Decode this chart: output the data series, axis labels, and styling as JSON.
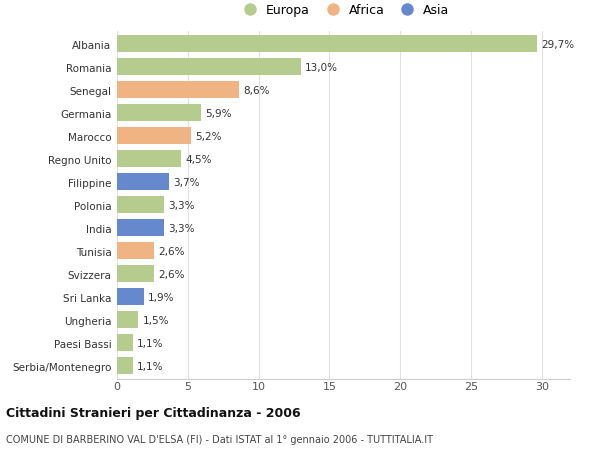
{
  "categories": [
    "Albania",
    "Romania",
    "Senegal",
    "Germania",
    "Marocco",
    "Regno Unito",
    "Filippine",
    "Polonia",
    "India",
    "Tunisia",
    "Svizzera",
    "Sri Lanka",
    "Ungheria",
    "Paesi Bassi",
    "Serbia/Montenegro"
  ],
  "values": [
    29.7,
    13.0,
    8.6,
    5.9,
    5.2,
    4.5,
    3.7,
    3.3,
    3.3,
    2.6,
    2.6,
    1.9,
    1.5,
    1.1,
    1.1
  ],
  "labels": [
    "29,7%",
    "13,0%",
    "8,6%",
    "5,9%",
    "5,2%",
    "4,5%",
    "3,7%",
    "3,3%",
    "3,3%",
    "2,6%",
    "2,6%",
    "1,9%",
    "1,5%",
    "1,1%",
    "1,1%"
  ],
  "continents": [
    "Europa",
    "Europa",
    "Africa",
    "Europa",
    "Africa",
    "Europa",
    "Asia",
    "Europa",
    "Asia",
    "Africa",
    "Europa",
    "Asia",
    "Europa",
    "Europa",
    "Europa"
  ],
  "colors": {
    "Europa": "#b5cc8e",
    "Africa": "#f0b482",
    "Asia": "#6688cc"
  },
  "legend_labels": [
    "Europa",
    "Africa",
    "Asia"
  ],
  "title": "Cittadini Stranieri per Cittadinanza - 2006",
  "subtitle": "COMUNE DI BARBERINO VAL D'ELSA (FI) - Dati ISTAT al 1° gennaio 2006 - TUTTITALIA.IT",
  "xlim": [
    0,
    32
  ],
  "xticks": [
    0,
    5,
    10,
    15,
    20,
    25,
    30
  ],
  "background_color": "#ffffff",
  "grid_color": "#e0e0e0",
  "bar_height": 0.75
}
